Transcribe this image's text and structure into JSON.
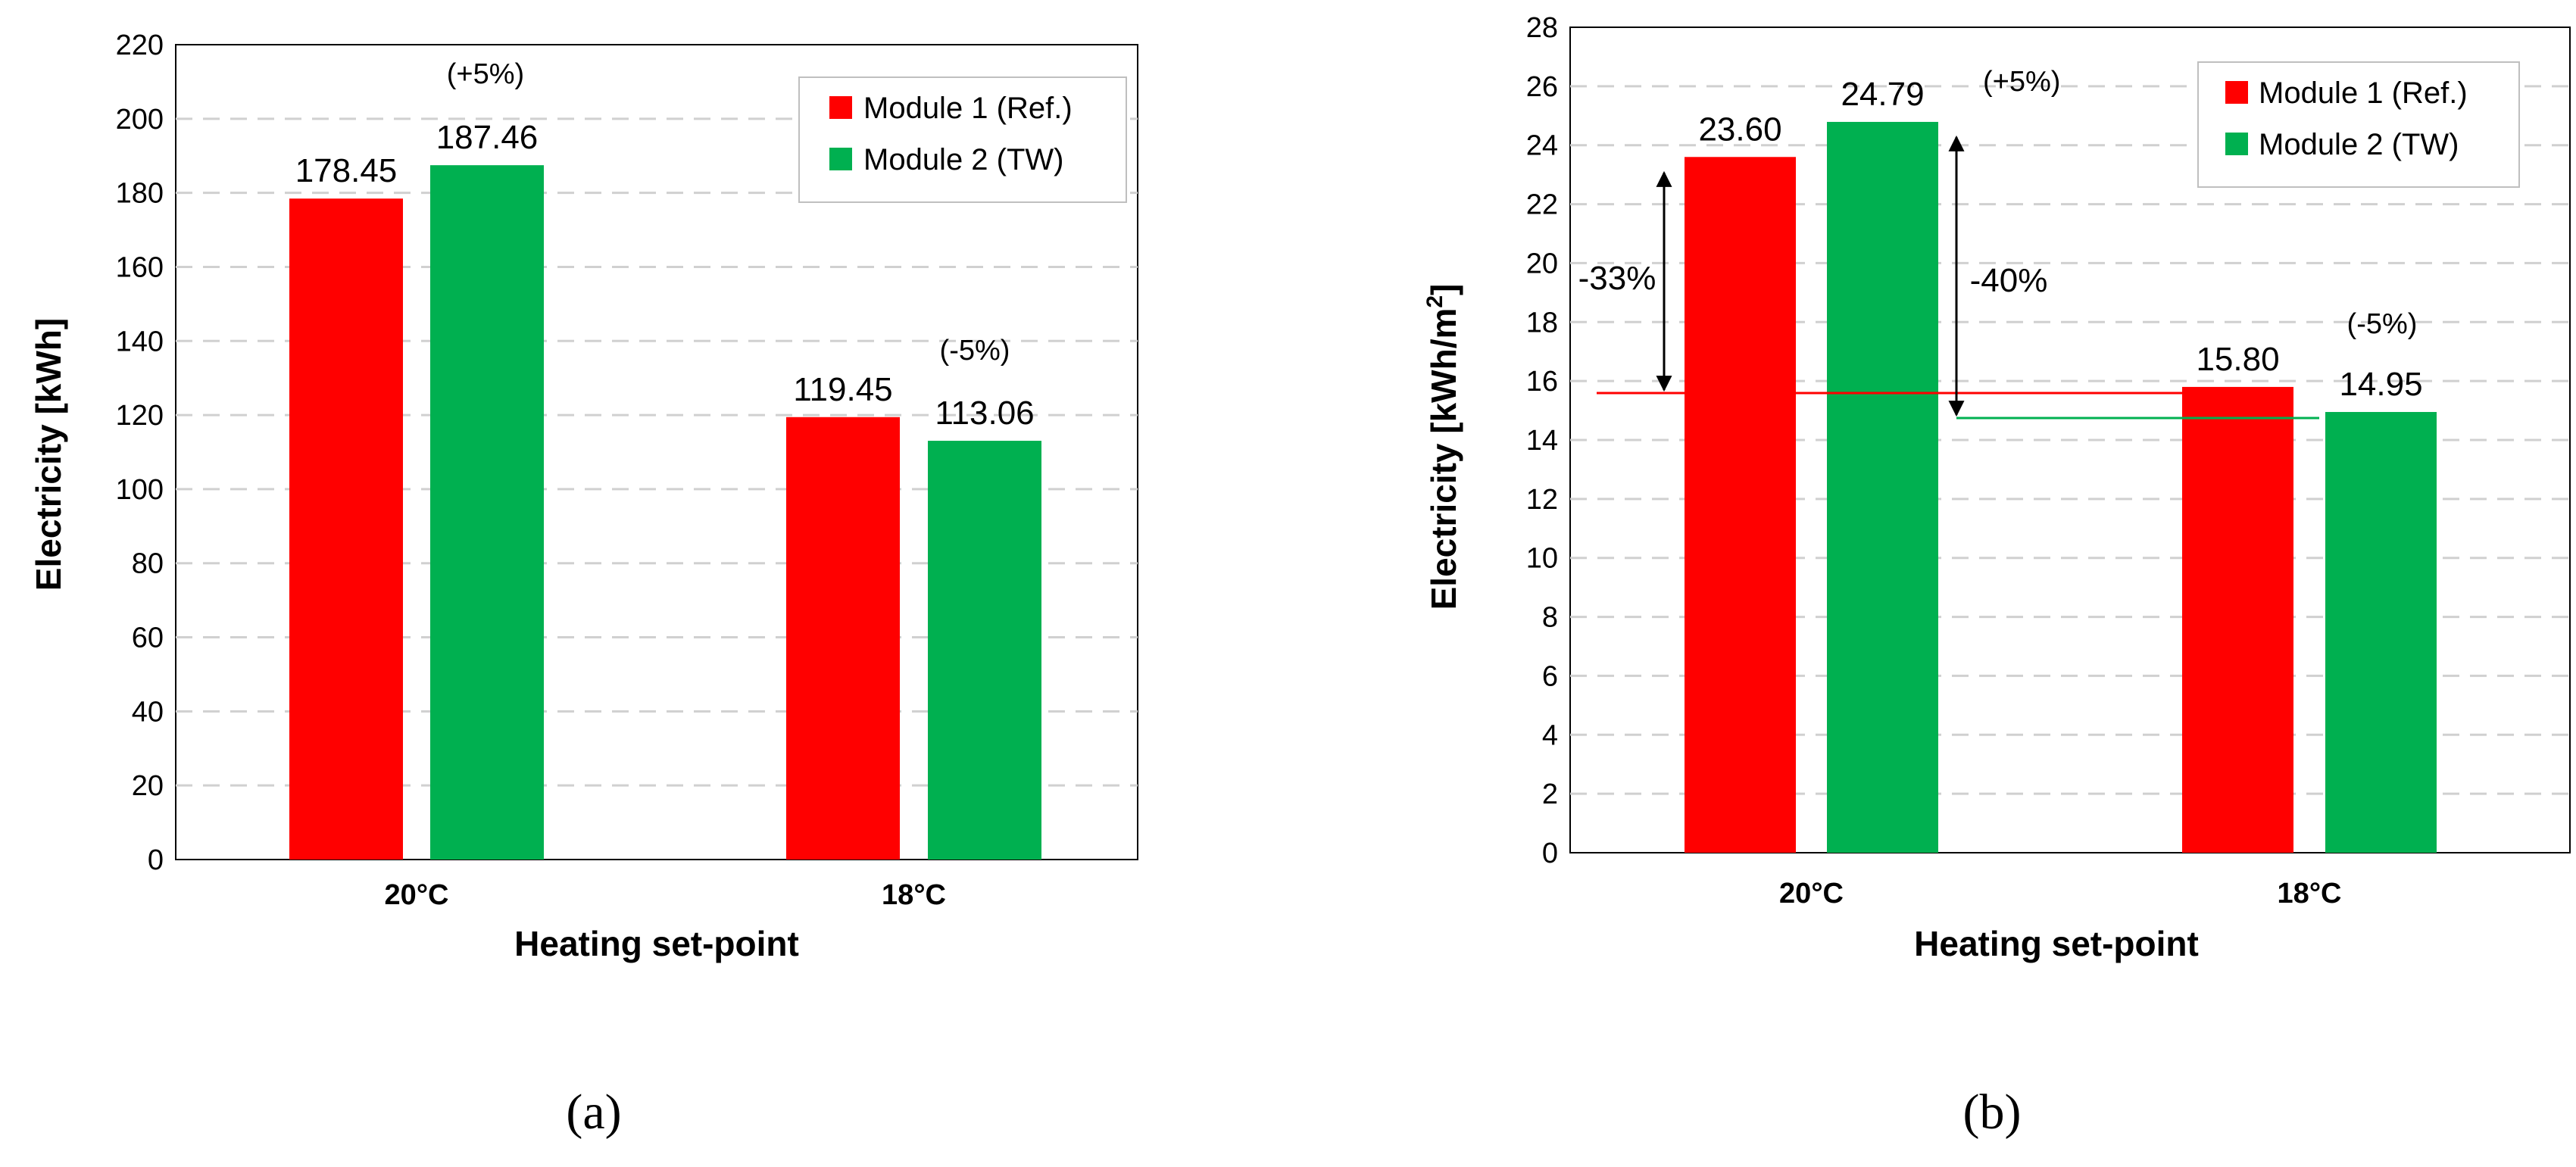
{
  "chart_data": [
    {
      "type": "bar",
      "panel_label": "(a)",
      "categories": [
        "20°C",
        "18°C"
      ],
      "series": [
        {
          "name": "Module 1 (Ref.)",
          "color": "#ff0000",
          "values": [
            178.45,
            119.45
          ],
          "labels": [
            "178.45",
            "119.45"
          ]
        },
        {
          "name": "Module 2 (TW)",
          "color": "#00b050",
          "values": [
            187.46,
            113.06
          ],
          "labels": [
            "187.46",
            "113.06"
          ]
        }
      ],
      "annotations": [
        "(+5%)",
        "(-5%)"
      ],
      "xlabel": "Heating set-point",
      "ylabel": "Electricity [kWh]",
      "ylim": [
        0,
        220
      ],
      "ytick_step": 20,
      "grid": true,
      "legend": "top-right"
    },
    {
      "type": "bar",
      "panel_label": "(b)",
      "categories": [
        "20°C",
        "18°C"
      ],
      "series": [
        {
          "name": "Module 1 (Ref.)",
          "color": "#ff0000",
          "values": [
            23.6,
            15.8
          ],
          "labels": [
            "23.60",
            "15.80"
          ]
        },
        {
          "name": "Module 2 (TW)",
          "color": "#00b050",
          "values": [
            24.79,
            14.95
          ],
          "labels": [
            "24.79",
            "14.95"
          ]
        }
      ],
      "annotations": [
        "(+5%)",
        "(-5%)",
        "-33%",
        "-40%"
      ],
      "xlabel": "Heating set-point",
      "ylabel_main": "Electricity [kWh/m",
      "ylabel_sup": "2",
      "ylabel_end": "]",
      "ylim": [
        0,
        28
      ],
      "ytick_step": 2,
      "grid": true,
      "legend": "top-right"
    }
  ]
}
